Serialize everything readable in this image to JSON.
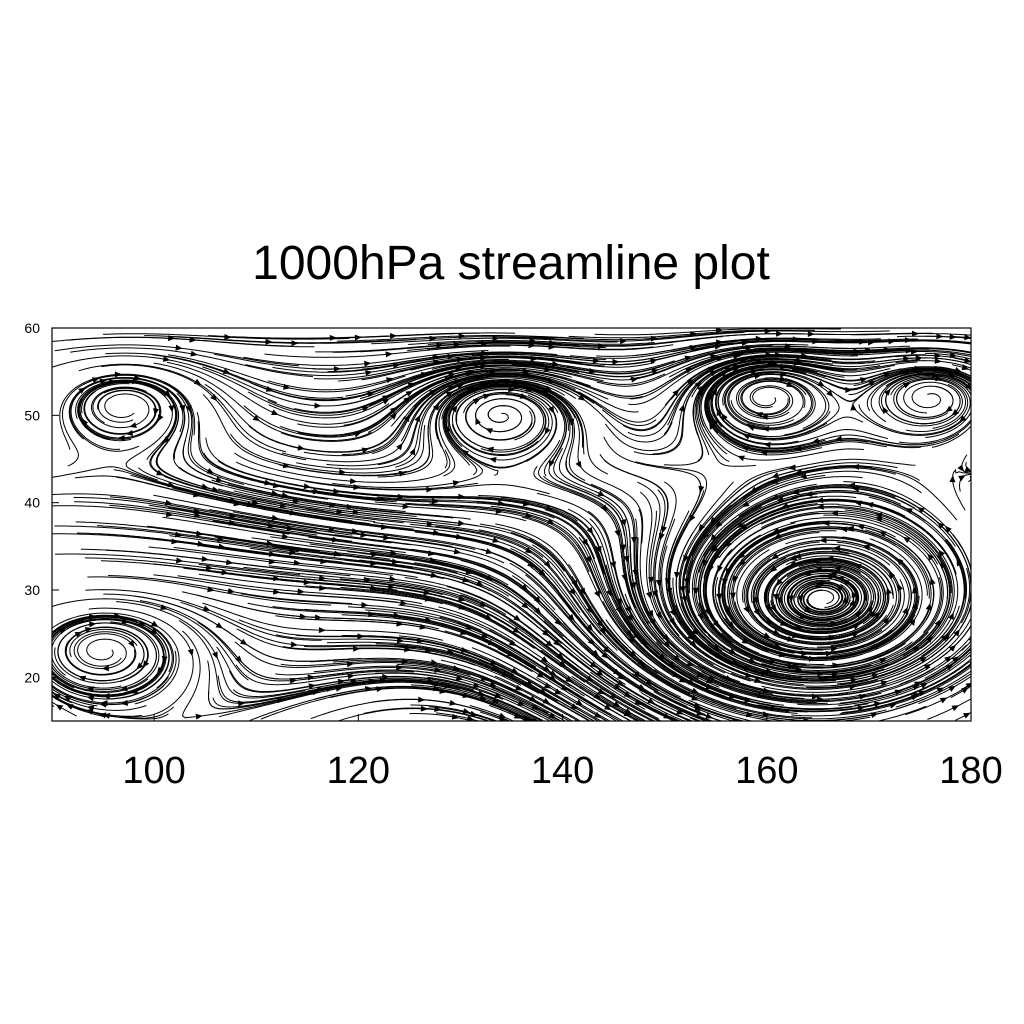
{
  "chart_data": {
    "type": "streamline",
    "title": "1000hPa streamline plot",
    "xlabel": "",
    "ylabel": "",
    "xlim": [
      90,
      180
    ],
    "ylim": [
      15,
      60
    ],
    "x_ticks": [
      "100",
      "120",
      "140",
      "160",
      "180"
    ],
    "y_ticks": [
      "20",
      "30",
      "40",
      "50",
      "60"
    ],
    "features": [
      {
        "kind": "cyclone",
        "center": [
          165.5,
          29
        ],
        "rotation": "counterclockwise"
      },
      {
        "kind": "anticyclone",
        "center": [
          160,
          52
        ],
        "rotation": "clockwise"
      },
      {
        "kind": "anticyclone",
        "center": [
          134,
          50
        ],
        "rotation": "clockwise"
      },
      {
        "kind": "anticyclone",
        "center": [
          176,
          52
        ],
        "rotation": "clockwise"
      },
      {
        "kind": "anticyclone",
        "center": [
          97,
          51
        ],
        "rotation": "clockwise"
      },
      {
        "kind": "anticyclone",
        "center": [
          95,
          23
        ],
        "rotation": "clockwise"
      }
    ],
    "background_flow": "westerly, stronger at higher latitudes",
    "grid": false,
    "line_color": "#000000"
  }
}
